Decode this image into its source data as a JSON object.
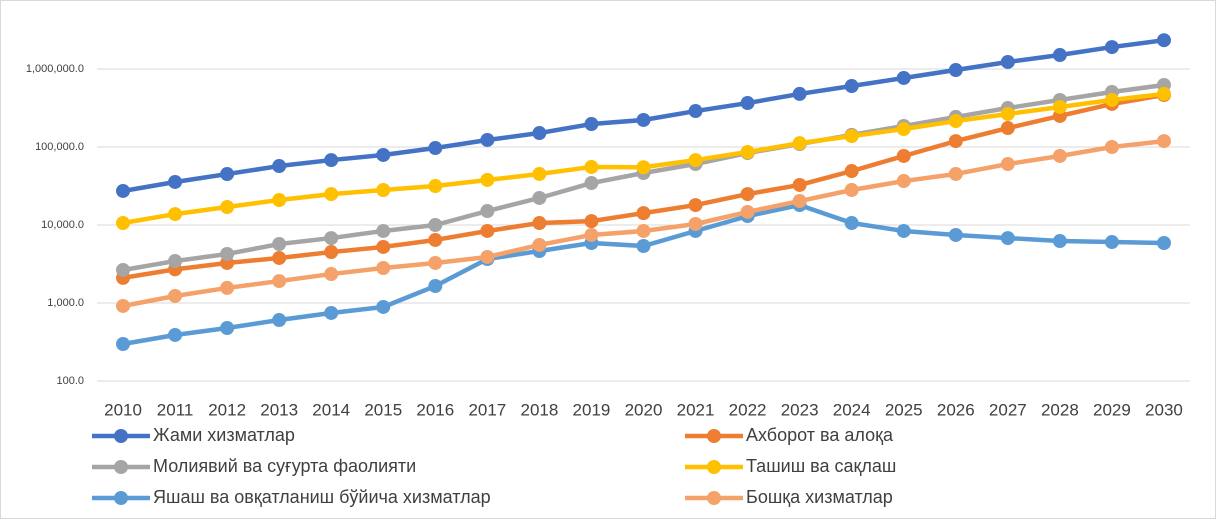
{
  "chart_data": {
    "type": "line",
    "log_scale": true,
    "grid": true,
    "legend": "bottom",
    "categories": [
      "2010",
      "2011",
      "2012",
      "2013",
      "2014",
      "2015",
      "2016",
      "2017",
      "2018",
      "2019",
      "2020",
      "2021",
      "2022",
      "2023",
      "2024",
      "2025",
      "2026",
      "2027",
      "2028",
      "2029",
      "2030"
    ],
    "ylim": [
      100,
      10000000
    ],
    "yticks": [
      {
        "value": 100,
        "label": "100.0"
      },
      {
        "value": 1000,
        "label": "1,000.0"
      },
      {
        "value": 10000,
        "label": "10,000.0"
      },
      {
        "value": 100000,
        "label": "100,000.0"
      },
      {
        "value": 1000000,
        "label": "1,000,000.0"
      }
    ],
    "series": [
      {
        "name": "Жами хизматлар",
        "color": "#4472c4",
        "values": [
          27300,
          35600,
          45000,
          57000,
          68000,
          79000,
          97000,
          123000,
          151000,
          197000,
          222000,
          289000,
          366000,
          479000,
          605000,
          767000,
          970000,
          1230000,
          1510000,
          1910000,
          2340000
        ]
      },
      {
        "name": "Ахборот ва алоқа",
        "color": "#ed7d31",
        "values": [
          2100,
          2700,
          3260,
          3780,
          4500,
          5230,
          6430,
          8380,
          10600,
          11200,
          14200,
          18000,
          24900,
          32600,
          49200,
          76700,
          119000,
          175000,
          250000,
          356000,
          464000
        ]
      },
      {
        "name": "Молиявий ва суғурта фаолияти",
        "color": "#a5a5a5",
        "values": [
          2650,
          3450,
          4250,
          5700,
          6800,
          8380,
          10000,
          15100,
          22200,
          34500,
          46400,
          60500,
          83700,
          109000,
          143000,
          186000,
          243000,
          316000,
          401000,
          507000,
          624000
        ]
      },
      {
        "name": "Ташиш ва сақлаш",
        "color": "#ffc000",
        "values": [
          10600,
          13800,
          17000,
          20900,
          24900,
          28100,
          31600,
          37800,
          45100,
          55500,
          55000,
          68000,
          86300,
          112000,
          138000,
          170000,
          215000,
          265000,
          326000,
          401000,
          479000
        ]
      },
      {
        "name": "Яшаш ва овқатланиш бўйича хизматлар",
        "color": "#5b9bd5",
        "values": [
          298,
          389,
          478,
          605,
          745,
          889,
          1650,
          3660,
          4640,
          5880,
          5380,
          8380,
          13000,
          18000,
          10600,
          8380,
          7450,
          6800,
          6230,
          6050,
          5880
        ]
      },
      {
        "name": "Бошқа хизматлар",
        "color": "#f4a16a",
        "values": [
          916,
          1230,
          1560,
          1910,
          2350,
          2810,
          3260,
          3890,
          5550,
          7450,
          8380,
          10300,
          14700,
          20300,
          28100,
          36600,
          45100,
          60500,
          76700,
          100000,
          119000
        ]
      }
    ]
  }
}
